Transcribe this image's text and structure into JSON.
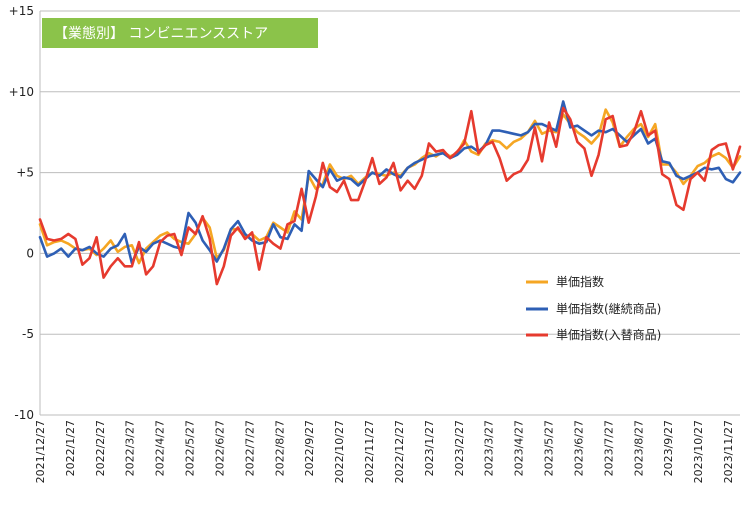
{
  "chart_data": {
    "type": "line",
    "title": "【業態別】 コンビニエンスストア",
    "title_bg": "#8BC34A",
    "ylim": [
      -10,
      15
    ],
    "y_ticks": [
      {
        "value": 15,
        "label": "+15"
      },
      {
        "value": 10,
        "label": "+10"
      },
      {
        "value": 5,
        "label": "+5"
      },
      {
        "value": 0,
        "label": "0"
      },
      {
        "value": -5,
        "label": "-5"
      },
      {
        "value": -10,
        "label": "-10"
      }
    ],
    "x_tick_labels": [
      "2021/12/27",
      "2022/1/27",
      "2022/2/27",
      "2022/3/27",
      "2022/4/27",
      "2022/5/27",
      "2022/6/27",
      "2022/7/27",
      "2022/8/27",
      "2022/9/27",
      "2022/10/27",
      "2022/11/27",
      "2022/12/27",
      "2023/1/27",
      "2023/2/27",
      "2023/3/27",
      "2023/4/27",
      "2023/5/27",
      "2023/6/27",
      "2023/7/27",
      "2023/8/27",
      "2023/9/27",
      "2023/10/27",
      "2023/11/27"
    ],
    "grid": "horizontal",
    "legend_position": "right-center",
    "series": [
      {
        "name": "単価指数",
        "color": "#F5A623",
        "values": [
          1.8,
          0.5,
          0.7,
          0.8,
          0.6,
          0.3,
          0.2,
          0.3,
          -0.1,
          0.3,
          0.8,
          0.1,
          0.4,
          0.5,
          -0.6,
          0.3,
          0.7,
          1.1,
          1.3,
          0.9,
          0.7,
          0.6,
          1.2,
          2.2,
          1.6,
          -0.3,
          0.2,
          1.5,
          1.5,
          1.0,
          1.2,
          0.8,
          1.0,
          1.9,
          1.6,
          1.3,
          2.6,
          2.1,
          4.8,
          4.0,
          4.3,
          5.5,
          4.8,
          4.6,
          4.8,
          4.3,
          4.7,
          5.0,
          4.9,
          4.8,
          5.0,
          4.8,
          5.3,
          5.5,
          5.9,
          6.2,
          6.0,
          6.3,
          6.0,
          6.2,
          7.0,
          6.3,
          6.1,
          6.8,
          7.0,
          6.9,
          6.5,
          6.9,
          7.1,
          7.5,
          8.2,
          7.4,
          7.6,
          7.5,
          8.6,
          8.0,
          7.5,
          7.2,
          6.8,
          7.3,
          8.9,
          8.1,
          6.6,
          7.2,
          7.7,
          8.0,
          7.2,
          8.0,
          5.5,
          5.5,
          5.0,
          4.3,
          4.8,
          5.4,
          5.6,
          6.0,
          6.2,
          5.9,
          5.3,
          6.0
        ]
      },
      {
        "name": "単価指数(継続商品)",
        "color": "#2E5FB5",
        "values": [
          1.0,
          -0.2,
          0.0,
          0.3,
          -0.2,
          0.3,
          0.2,
          0.4,
          0.0,
          -0.2,
          0.3,
          0.5,
          1.2,
          -0.6,
          0.4,
          0.1,
          0.6,
          0.8,
          0.6,
          0.4,
          0.3,
          2.5,
          1.9,
          0.8,
          0.2,
          -0.5,
          0.3,
          1.5,
          2.0,
          1.2,
          0.8,
          0.6,
          0.7,
          1.8,
          1.0,
          0.9,
          1.8,
          1.4,
          5.1,
          4.6,
          4.1,
          5.2,
          4.5,
          4.7,
          4.6,
          4.2,
          4.6,
          5.0,
          4.8,
          5.2,
          4.9,
          4.7,
          5.3,
          5.6,
          5.8,
          6.0,
          6.1,
          6.2,
          5.9,
          6.1,
          6.5,
          6.6,
          6.3,
          6.7,
          7.6,
          7.6,
          7.5,
          7.4,
          7.3,
          7.5,
          8.0,
          8.0,
          7.8,
          7.6,
          9.4,
          7.8,
          7.9,
          7.6,
          7.3,
          7.6,
          7.5,
          7.7,
          7.3,
          6.9,
          7.3,
          7.7,
          6.8,
          7.1,
          5.7,
          5.6,
          4.8,
          4.6,
          4.8,
          5.0,
          5.3,
          5.2,
          5.3,
          4.6,
          4.4,
          5.0
        ]
      },
      {
        "name": "単価指数(入替商品)",
        "color": "#E63A2E",
        "values": [
          2.1,
          0.9,
          0.8,
          0.9,
          1.2,
          0.9,
          -0.7,
          -0.3,
          1.0,
          -1.5,
          -0.8,
          -0.3,
          -0.8,
          -0.8,
          0.7,
          -1.3,
          -0.8,
          0.7,
          1.1,
          1.2,
          -0.1,
          1.6,
          1.2,
          2.3,
          0.9,
          -1.9,
          -0.8,
          1.1,
          1.6,
          0.9,
          1.3,
          -1.0,
          1.0,
          0.6,
          0.3,
          1.8,
          2.0,
          4.0,
          1.9,
          3.5,
          5.6,
          4.1,
          3.8,
          4.5,
          3.3,
          3.3,
          4.5,
          5.9,
          4.3,
          4.7,
          5.6,
          3.9,
          4.5,
          4.0,
          4.8,
          6.8,
          6.3,
          6.4,
          5.9,
          6.3,
          6.8,
          8.8,
          6.2,
          6.7,
          6.9,
          5.9,
          4.5,
          4.9,
          5.1,
          5.8,
          7.8,
          5.7,
          8.1,
          6.6,
          9.0,
          8.3,
          6.9,
          6.5,
          4.8,
          6.1,
          8.3,
          8.5,
          6.6,
          6.7,
          7.5,
          8.8,
          7.3,
          7.6,
          4.9,
          4.6,
          3.0,
          2.7,
          4.6,
          5.0,
          4.5,
          6.4,
          6.7,
          6.8,
          5.2,
          6.6
        ]
      }
    ]
  }
}
